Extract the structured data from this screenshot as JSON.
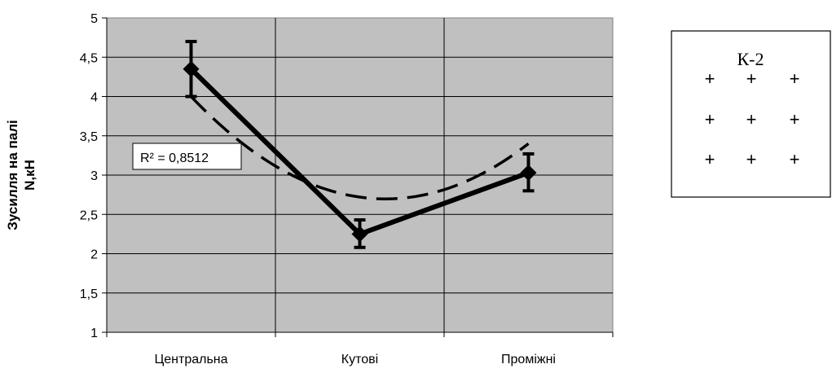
{
  "chart_data": {
    "type": "line",
    "categories": [
      "Центральна",
      "Кутові",
      "Проміжні"
    ],
    "series": [
      {
        "values": [
          4.35,
          2.25,
          3.03
        ],
        "error_low": [
          4.0,
          2.08,
          2.8
        ],
        "error_high": [
          4.7,
          2.43,
          3.27
        ]
      }
    ],
    "trendline": {
      "style": "dashed",
      "type": "polynomial",
      "order": 2,
      "values": [
        4.0,
        2.72,
        3.4
      ],
      "label": "R² = 0,8512"
    },
    "ylabel_line1": "Зусилля на палі",
    "ylabel_line2": "N,кН",
    "ylim": [
      1,
      5
    ],
    "yticks": [
      "1",
      "1,5",
      "2",
      "2,5",
      "3",
      "3,5",
      "4",
      "4,5",
      "5"
    ],
    "grid": true,
    "plot_background": "#C0C0C0",
    "line_color": "#000000"
  },
  "inset": {
    "title": "К-2",
    "grid_symbol": "+",
    "rows": 3,
    "cols": 3
  }
}
